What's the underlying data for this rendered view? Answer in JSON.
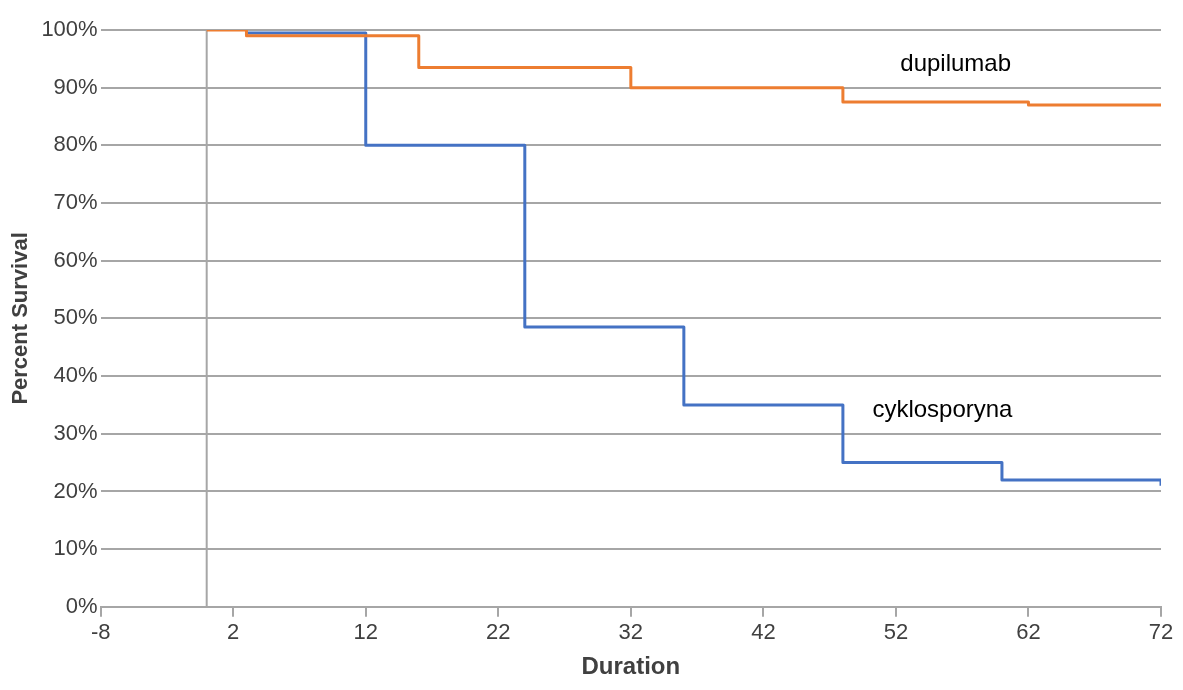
{
  "chart_data": {
    "type": "step",
    "xlabel": "Duration",
    "ylabel": "Percent Survival",
    "xlim": [
      -8,
      72
    ],
    "xticks": [
      -8,
      2,
      12,
      22,
      32,
      42,
      52,
      62,
      72
    ],
    "ylim": [
      0,
      100
    ],
    "yticks": [
      {
        "value": 0,
        "label": "0%"
      },
      {
        "value": 10,
        "label": "10%"
      },
      {
        "value": 20,
        "label": "20%"
      },
      {
        "value": 30,
        "label": "30%"
      },
      {
        "value": 40,
        "label": "40%"
      },
      {
        "value": 50,
        "label": "50%"
      },
      {
        "value": 60,
        "label": "60%"
      },
      {
        "value": 70,
        "label": "70%"
      },
      {
        "value": 80,
        "label": "80%"
      },
      {
        "value": 90,
        "label": "90%"
      },
      {
        "value": 100,
        "label": "100%"
      }
    ],
    "grid": "y",
    "legend": false,
    "marker": "none",
    "line_style": "solid",
    "ref_lines": [
      {
        "axis": "x",
        "value": 0,
        "color": "#a6a6a6"
      }
    ],
    "series": [
      {
        "name": "dupilumab",
        "color": "#ed7d31",
        "x": [
          0,
          3,
          16,
          32,
          48,
          62,
          72
        ],
        "values": [
          100,
          99,
          93.5,
          90,
          87.5,
          87,
          87
        ]
      },
      {
        "name": "cyklosporyna",
        "color": "#4472c4",
        "x": [
          3,
          12,
          24,
          36,
          48,
          60,
          72
        ],
        "values": [
          99.5,
          80,
          48.5,
          35,
          25,
          22,
          21
        ]
      }
    ]
  }
}
